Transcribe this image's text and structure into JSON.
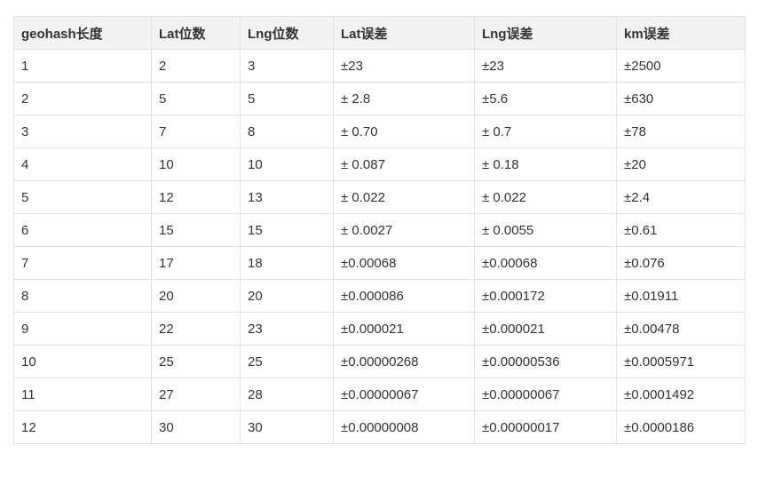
{
  "table": {
    "headers": [
      "geohash长度",
      "Lat位数",
      "Lng位数",
      "Lat误差",
      "Lng误差",
      "km误差"
    ],
    "rows": [
      [
        "1",
        "2",
        "3",
        "±23",
        "±23",
        "±2500"
      ],
      [
        "2",
        "5",
        "5",
        "± 2.8",
        "±5.6",
        "±630"
      ],
      [
        "3",
        "7",
        "8",
        "± 0.70",
        "± 0.7",
        "±78"
      ],
      [
        "4",
        "10",
        "10",
        "± 0.087",
        "± 0.18",
        "±20"
      ],
      [
        "5",
        "12",
        "13",
        "± 0.022",
        "± 0.022",
        "±2.4"
      ],
      [
        "6",
        "15",
        "15",
        "± 0.0027",
        "± 0.0055",
        "±0.61"
      ],
      [
        "7",
        "17",
        "18",
        "±0.00068",
        "±0.00068",
        "±0.076"
      ],
      [
        "8",
        "20",
        "20",
        "±0.000086",
        "±0.000172",
        "±0.01911"
      ],
      [
        "9",
        "22",
        "23",
        "±0.000021",
        "±0.000021",
        "±0.00478"
      ],
      [
        "10",
        "25",
        "25",
        "±0.00000268",
        "±0.00000536",
        "±0.0005971"
      ],
      [
        "11",
        "27",
        "28",
        "±0.00000067",
        "±0.00000067",
        "±0.0001492"
      ],
      [
        "12",
        "30",
        "30",
        "±0.00000008",
        "±0.00000017",
        "±0.0000186"
      ]
    ]
  }
}
